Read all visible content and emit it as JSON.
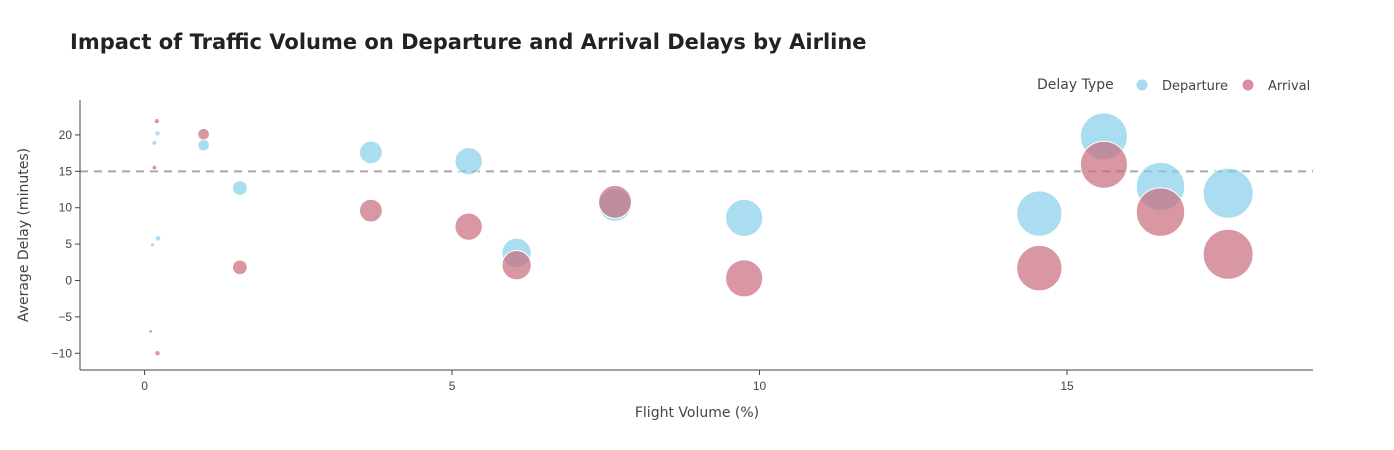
{
  "chart_data": {
    "type": "scatter",
    "title": "Impact of Traffic Volume on Departure and Arrival Delays by Airline",
    "xlabel": "Flight Volume (%)",
    "ylabel": "Average Delay (minutes)",
    "xlim": [
      -1.05,
      19.0
    ],
    "ylim": [
      -12.3,
      24.8
    ],
    "xticks": [
      0,
      5,
      10,
      15
    ],
    "yticks": [
      -10,
      -5,
      0,
      5,
      10,
      15,
      20
    ],
    "reference_line": {
      "y": 15,
      "style": "dashed"
    },
    "legend": {
      "title": "Delay Type",
      "position": "top-right"
    },
    "grid": false,
    "series": [
      {
        "name": "Departure",
        "color": "#87CEEB",
        "points": [
          {
            "x": 0.13,
            "y": 4.9
          },
          {
            "x": 0.16,
            "y": 18.9
          },
          {
            "x": 0.21,
            "y": 20.2
          },
          {
            "x": 0.22,
            "y": 5.8
          },
          {
            "x": 0.96,
            "y": 18.6
          },
          {
            "x": 1.55,
            "y": 12.7
          },
          {
            "x": 3.68,
            "y": 17.6
          },
          {
            "x": 5.27,
            "y": 16.4
          },
          {
            "x": 6.05,
            "y": 3.8
          },
          {
            "x": 7.65,
            "y": 10.4
          },
          {
            "x": 9.75,
            "y": 8.6
          },
          {
            "x": 14.55,
            "y": 9.2
          },
          {
            "x": 15.6,
            "y": 19.8
          },
          {
            "x": 16.52,
            "y": 12.9
          },
          {
            "x": 17.62,
            "y": 12.0
          }
        ]
      },
      {
        "name": "Arrival",
        "color": "#C96B7C",
        "points": [
          {
            "x": 0.1,
            "y": -7.0
          },
          {
            "x": 0.16,
            "y": 15.5
          },
          {
            "x": 0.2,
            "y": 21.9
          },
          {
            "x": 0.21,
            "y": -10.0
          },
          {
            "x": 0.96,
            "y": 20.1
          },
          {
            "x": 1.55,
            "y": 1.8
          },
          {
            "x": 3.68,
            "y": 9.6
          },
          {
            "x": 5.27,
            "y": 7.4
          },
          {
            "x": 6.05,
            "y": 2.1
          },
          {
            "x": 7.65,
            "y": 10.8
          },
          {
            "x": 9.75,
            "y": 0.3
          },
          {
            "x": 14.55,
            "y": 1.7
          },
          {
            "x": 15.6,
            "y": 15.9
          },
          {
            "x": 16.52,
            "y": 9.4
          },
          {
            "x": 17.62,
            "y": 3.6
          }
        ]
      }
    ]
  }
}
